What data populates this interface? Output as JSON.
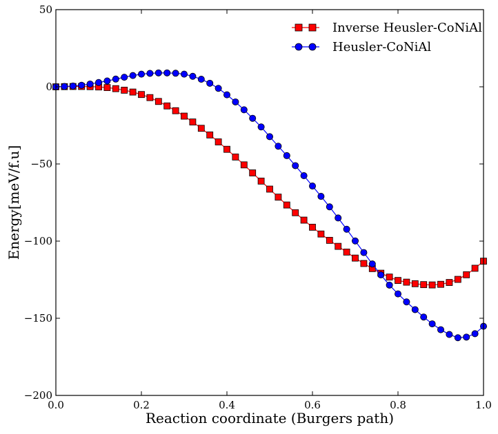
{
  "chart_data": {
    "type": "line",
    "xlabel": "Reaction coordinate (Burgers path)",
    "ylabel": "Energy[meV/f.u]",
    "xlim": [
      0.0,
      1.0
    ],
    "ylim": [
      -200,
      50
    ],
    "x_ticks": [
      "0.0",
      "0.2",
      "0.4",
      "0.6",
      "0.8",
      "1.0"
    ],
    "y_ticks": [
      "50",
      "0",
      "−50",
      "−100",
      "−150",
      "−200"
    ],
    "x_tick_values": [
      0.0,
      0.2,
      0.4,
      0.6,
      0.8,
      1.0
    ],
    "y_tick_values": [
      50,
      0,
      -50,
      -100,
      -150,
      -200
    ],
    "grid": false,
    "legend_position": "top-right",
    "x": [
      0.0,
      0.02,
      0.04,
      0.06,
      0.08,
      0.1,
      0.12,
      0.14,
      0.16,
      0.18,
      0.2,
      0.22,
      0.24,
      0.26,
      0.28,
      0.3,
      0.32,
      0.34,
      0.36,
      0.38,
      0.4,
      0.42,
      0.44,
      0.46,
      0.48,
      0.5,
      0.52,
      0.54,
      0.56,
      0.58,
      0.6,
      0.62,
      0.64,
      0.66,
      0.68,
      0.7,
      0.72,
      0.74,
      0.76,
      0.78,
      0.8,
      0.82,
      0.84,
      0.86,
      0.88,
      0.9,
      0.92,
      0.94,
      0.96,
      0.98,
      1.0
    ],
    "series": [
      {
        "name": "Inverse Heusler-CoNiAl",
        "color": "#ff0000",
        "marker": "square",
        "values": [
          0,
          0.1,
          0.2,
          0.2,
          0.1,
          -0.1,
          -0.5,
          -1.2,
          -2.2,
          -3.4,
          -5.0,
          -7.0,
          -9.5,
          -12.4,
          -15.5,
          -19.0,
          -22.8,
          -26.9,
          -31.2,
          -35.7,
          -40.5,
          -45.5,
          -50.6,
          -55.8,
          -61.1,
          -66.3,
          -71.5,
          -76.6,
          -81.6,
          -86.4,
          -91.0,
          -95.4,
          -99.5,
          -103.4,
          -107.1,
          -111.0,
          -114.5,
          -117.8,
          -120.8,
          -123.3,
          -125.5,
          -126.6,
          -127.6,
          -128.2,
          -128.4,
          -128.0,
          -126.8,
          -124.8,
          -121.8,
          -117.6,
          -113.0
        ]
      },
      {
        "name": "Heusler-CoNiAl",
        "color": "#0000ff",
        "marker": "circle",
        "values": [
          0,
          0.2,
          0.5,
          1.0,
          1.8,
          2.8,
          3.8,
          5.0,
          6.2,
          7.3,
          8.2,
          8.7,
          9.0,
          9.0,
          8.8,
          8.2,
          6.8,
          4.9,
          2.3,
          -1.0,
          -5.2,
          -9.8,
          -14.9,
          -20.4,
          -26.0,
          -32.3,
          -38.5,
          -44.6,
          -51.1,
          -57.6,
          -64.3,
          -71.0,
          -77.8,
          -85.0,
          -92.3,
          -99.9,
          -107.4,
          -114.8,
          -121.9,
          -128.5,
          -134.2,
          -139.4,
          -144.4,
          -149.2,
          -153.6,
          -157.4,
          -160.5,
          -162.6,
          -162.2,
          -160.0,
          -155.2
        ]
      }
    ]
  }
}
